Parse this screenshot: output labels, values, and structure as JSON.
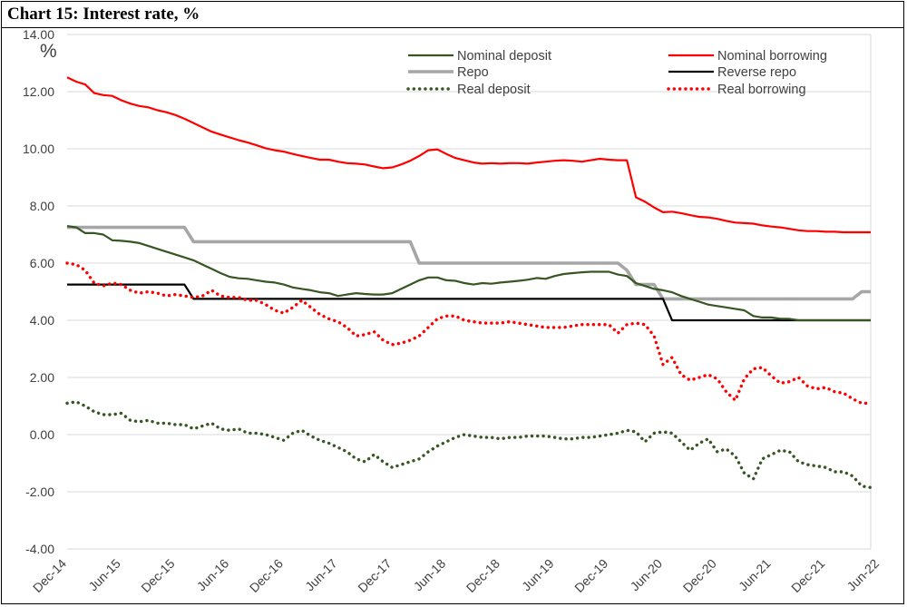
{
  "chart_data": {
    "type": "line",
    "title": "Chart 15: Interest rate, %",
    "ylabel": "%",
    "ylim": [
      -4,
      14
    ],
    "yticks": [
      "14.00",
      "12.00",
      "10.00",
      "8.00",
      "6.00",
      "4.00",
      "2.00",
      "0.00",
      "-2.00",
      "-4.00"
    ],
    "grid": true,
    "legend_position": "top",
    "x_start": "Dec-14",
    "x_tick_labels": [
      "Dec-14",
      "Jun-15",
      "Dec-15",
      "Jun-16",
      "Dec-16",
      "Jun-17",
      "Dec-17",
      "Jun-18",
      "Dec-18",
      "Jun-19",
      "Dec-19",
      "Jun-20",
      "Dec-20",
      "Jun-21",
      "Dec-21",
      "Jun-22"
    ],
    "series": [
      {
        "name": "Nominal deposit",
        "color": "#375623",
        "style": "solid",
        "values": [
          7.3,
          7.25,
          7.05,
          7.05,
          7.0,
          6.8,
          6.78,
          6.75,
          6.7,
          6.6,
          6.5,
          6.4,
          6.3,
          6.2,
          6.1,
          5.95,
          5.8,
          5.65,
          5.52,
          5.47,
          5.45,
          5.4,
          5.35,
          5.32,
          5.25,
          5.15,
          5.1,
          5.05,
          4.98,
          4.95,
          4.85,
          4.9,
          4.95,
          4.92,
          4.9,
          4.9,
          4.95,
          5.1,
          5.25,
          5.4,
          5.5,
          5.5,
          5.4,
          5.38,
          5.3,
          5.25,
          5.3,
          5.28,
          5.32,
          5.35,
          5.38,
          5.42,
          5.48,
          5.45,
          5.55,
          5.62,
          5.65,
          5.68,
          5.7,
          5.7,
          5.7,
          5.6,
          5.55,
          5.3,
          5.2,
          5.1,
          5.05,
          4.98,
          4.85,
          4.75,
          4.65,
          4.55,
          4.5,
          4.45,
          4.4,
          4.35,
          4.15,
          4.1,
          4.1,
          4.05,
          4.05,
          4.0,
          4.0,
          4.0,
          4.0,
          4.0,
          4.0,
          4.0,
          4.0,
          4.0
        ]
      },
      {
        "name": "Nominal borrowing",
        "color": "#ff0000",
        "style": "solid",
        "values": [
          12.5,
          12.35,
          12.25,
          11.95,
          11.88,
          11.85,
          11.7,
          11.58,
          11.5,
          11.45,
          11.35,
          11.28,
          11.18,
          11.05,
          10.9,
          10.75,
          10.6,
          10.5,
          10.4,
          10.3,
          10.22,
          10.12,
          10.02,
          9.95,
          9.9,
          9.82,
          9.75,
          9.68,
          9.62,
          9.62,
          9.55,
          9.5,
          9.48,
          9.45,
          9.38,
          9.32,
          9.35,
          9.45,
          9.58,
          9.75,
          9.95,
          9.98,
          9.82,
          9.68,
          9.6,
          9.52,
          9.48,
          9.5,
          9.48,
          9.5,
          9.5,
          9.48,
          9.52,
          9.55,
          9.58,
          9.6,
          9.58,
          9.55,
          9.6,
          9.65,
          9.62,
          9.6,
          9.6,
          8.3,
          8.15,
          7.95,
          7.78,
          7.8,
          7.75,
          7.68,
          7.62,
          7.6,
          7.55,
          7.48,
          7.42,
          7.4,
          7.38,
          7.32,
          7.28,
          7.25,
          7.2,
          7.15,
          7.12,
          7.12,
          7.1,
          7.1,
          7.08,
          7.08,
          7.08,
          7.08
        ]
      },
      {
        "name": "Repo",
        "color": "#a6a6a6",
        "style": "solid",
        "values": [
          7.25,
          7.25,
          7.25,
          7.25,
          7.25,
          7.25,
          7.25,
          7.25,
          7.25,
          7.25,
          7.25,
          7.25,
          7.25,
          7.25,
          6.75,
          6.75,
          6.75,
          6.75,
          6.75,
          6.75,
          6.75,
          6.75,
          6.75,
          6.75,
          6.75,
          6.75,
          6.75,
          6.75,
          6.75,
          6.75,
          6.75,
          6.75,
          6.75,
          6.75,
          6.75,
          6.75,
          6.75,
          6.75,
          6.75,
          6.0,
          6.0,
          6.0,
          6.0,
          6.0,
          6.0,
          6.0,
          6.0,
          6.0,
          6.0,
          6.0,
          6.0,
          6.0,
          6.0,
          6.0,
          6.0,
          6.0,
          6.0,
          6.0,
          6.0,
          6.0,
          6.0,
          6.0,
          5.75,
          5.25,
          5.25,
          5.25,
          4.75,
          4.75,
          4.75,
          4.75,
          4.75,
          4.75,
          4.75,
          4.75,
          4.75,
          4.75,
          4.75,
          4.75,
          4.75,
          4.75,
          4.75,
          4.75,
          4.75,
          4.75,
          4.75,
          4.75,
          4.75,
          4.75,
          5.0,
          5.0
        ]
      },
      {
        "name": "Reverse repo",
        "color": "#000000",
        "style": "solid",
        "values": [
          5.25,
          5.25,
          5.25,
          5.25,
          5.25,
          5.25,
          5.25,
          5.25,
          5.25,
          5.25,
          5.25,
          5.25,
          5.25,
          5.25,
          4.75,
          4.75,
          4.75,
          4.75,
          4.75,
          4.75,
          4.75,
          4.75,
          4.75,
          4.75,
          4.75,
          4.75,
          4.75,
          4.75,
          4.75,
          4.75,
          4.75,
          4.75,
          4.75,
          4.75,
          4.75,
          4.75,
          4.75,
          4.75,
          4.75,
          4.75,
          4.75,
          4.75,
          4.75,
          4.75,
          4.75,
          4.75,
          4.75,
          4.75,
          4.75,
          4.75,
          4.75,
          4.75,
          4.75,
          4.75,
          4.75,
          4.75,
          4.75,
          4.75,
          4.75,
          4.75,
          4.75,
          4.75,
          4.75,
          4.75,
          4.75,
          4.75,
          4.75,
          4.0,
          4.0,
          4.0,
          4.0,
          4.0,
          4.0,
          4.0,
          4.0,
          4.0,
          4.0,
          4.0,
          4.0,
          4.0,
          4.0,
          4.0,
          4.0,
          4.0,
          4.0,
          4.0,
          4.0,
          4.0,
          4.0,
          4.0
        ]
      },
      {
        "name": "Real deposit",
        "color": "#375623",
        "style": "dotted",
        "values": [
          1.1,
          1.15,
          1.0,
          0.8,
          0.7,
          0.7,
          0.75,
          0.5,
          0.45,
          0.5,
          0.4,
          0.4,
          0.35,
          0.35,
          0.2,
          0.3,
          0.4,
          0.2,
          0.15,
          0.2,
          0.05,
          0.05,
          0.0,
          -0.1,
          -0.2,
          0.05,
          0.15,
          -0.05,
          -0.2,
          -0.3,
          -0.45,
          -0.6,
          -0.85,
          -0.95,
          -0.7,
          -0.95,
          -1.15,
          -1.05,
          -0.95,
          -0.85,
          -0.6,
          -0.4,
          -0.25,
          -0.1,
          0.0,
          -0.05,
          -0.1,
          -0.1,
          -0.15,
          -0.1,
          -0.1,
          -0.05,
          -0.05,
          -0.05,
          -0.1,
          -0.15,
          -0.15,
          -0.1,
          -0.1,
          -0.05,
          0.0,
          0.05,
          0.15,
          0.1,
          -0.25,
          0.05,
          0.1,
          0.05,
          -0.25,
          -0.55,
          -0.3,
          -0.15,
          -0.6,
          -0.5,
          -0.75,
          -1.35,
          -1.55,
          -0.85,
          -0.7,
          -0.55,
          -0.6,
          -0.95,
          -1.05,
          -1.1,
          -1.15,
          -1.3,
          -1.3,
          -1.45,
          -1.8,
          -1.85
        ]
      },
      {
        "name": "Real borrowing",
        "color": "#ff0000",
        "style": "dotted",
        "values": [
          6.0,
          5.95,
          5.75,
          5.3,
          5.2,
          5.3,
          5.25,
          5.05,
          4.95,
          5.0,
          4.95,
          4.85,
          4.9,
          4.85,
          4.8,
          4.85,
          5.05,
          4.85,
          4.8,
          4.8,
          4.7,
          4.7,
          4.55,
          4.35,
          4.25,
          4.45,
          4.7,
          4.45,
          4.2,
          4.05,
          3.95,
          3.75,
          3.45,
          3.5,
          3.6,
          3.3,
          3.15,
          3.2,
          3.3,
          3.45,
          3.75,
          4.05,
          4.15,
          4.15,
          4.0,
          3.95,
          3.9,
          3.9,
          3.9,
          3.95,
          3.9,
          3.85,
          3.8,
          3.75,
          3.75,
          3.75,
          3.8,
          3.85,
          3.85,
          3.85,
          3.85,
          3.55,
          3.85,
          3.9,
          3.85,
          3.45,
          2.45,
          2.7,
          2.1,
          1.9,
          2.0,
          2.1,
          1.95,
          1.5,
          1.2,
          1.95,
          2.3,
          2.35,
          2.05,
          1.8,
          1.85,
          2.0,
          1.7,
          1.6,
          1.65,
          1.5,
          1.45,
          1.25,
          1.1,
          1.1
        ]
      }
    ]
  }
}
